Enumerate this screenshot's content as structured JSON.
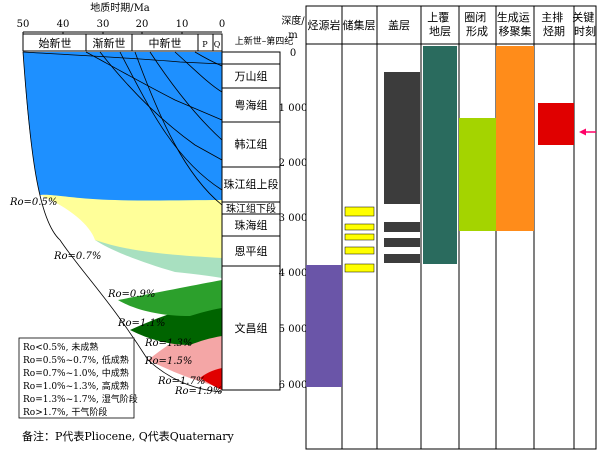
{
  "time_axis": {
    "title": "地质时期/Ma",
    "ticks": [
      "50",
      "40",
      "30",
      "20",
      "10",
      "0"
    ]
  },
  "epochs": [
    "始新世",
    "渐新世",
    "中新世",
    "P",
    "Q"
  ],
  "period_label": "上新世–第四纪",
  "depth_axis": {
    "title": "深度/",
    "unit": "m",
    "ticks": [
      "0",
      "1 000",
      "2 000",
      "3 000",
      "4 000",
      "5 000",
      "6 000"
    ]
  },
  "formations": [
    "万山组",
    "粤海组",
    "韩江组",
    "珠江组上段",
    "珠江组下段",
    "珠海组",
    "恩平组",
    "文昌组"
  ],
  "ro_labels": [
    "Ro=0.5%",
    "Ro=0.7%",
    "Ro=0.9%",
    "Ro=1.1%",
    "Ro=1.3%",
    "Ro=1.5%",
    "Ro=1.7%",
    "Ro=1.9%"
  ],
  "legend": [
    "Ro<0.5%, 未成熟",
    "Ro=0.5%~0.7%, 低成熟",
    "Ro=0.7%~1.0%, 中成熟",
    "Ro=1.0%~1.3%, 高成熟",
    "Ro=1.3%~1.7%, 湿气阶段",
    "Ro>1.7%, 干气阶段"
  ],
  "note": "备注：P代表Pliocene, Q代表Quaternary",
  "event_columns": [
    "烃源岩",
    "储集层",
    "盖层",
    "上覆\n地层",
    "圈闭\n形成",
    "生成运\n移聚集",
    "主排\n烃期",
    "关键\n时刻"
  ],
  "colors": {
    "blue": "#1e90ff",
    "yellow": "#ffff99",
    "light_green": "#a8e0c0",
    "mid_green": "#2ca02c",
    "dark_green": "#006400",
    "pink": "#f4a6a6",
    "red": "#e00000",
    "purple": "#6a55a8",
    "bright_yellow": "#ffff00",
    "dark_gray": "#3c3c3c",
    "teal": "#2a6b5e",
    "lime": "#a4d400",
    "orange": "#ff8c1a",
    "arrow": "#ff0066"
  }
}
